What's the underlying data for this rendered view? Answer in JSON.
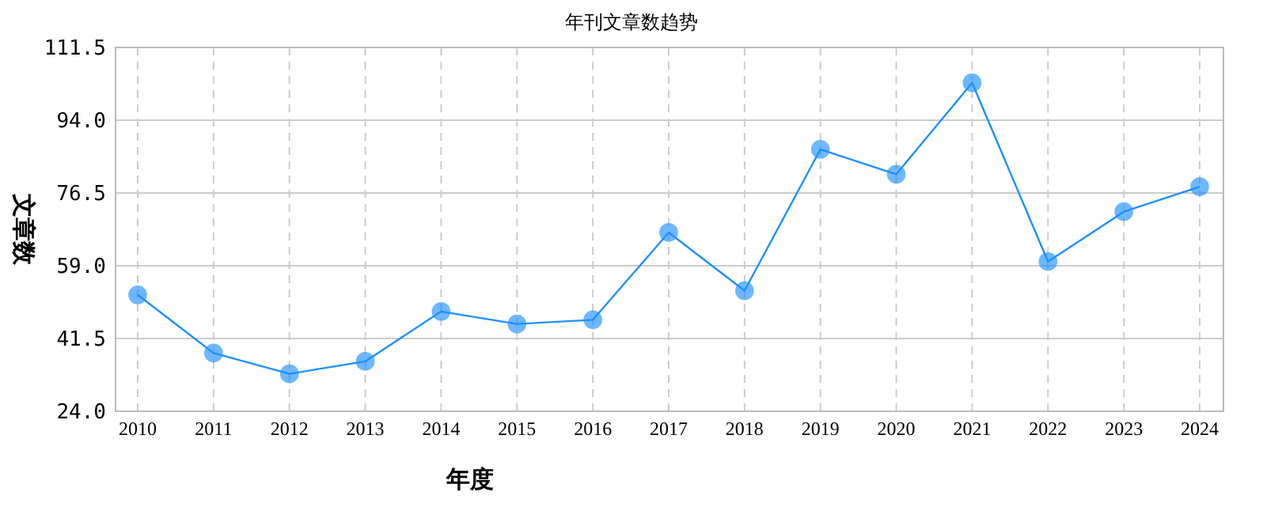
{
  "chart_data": {
    "type": "line",
    "title": "年刊文章数趋势",
    "xlabel": "年度",
    "ylabel": "文章数",
    "categories": [
      "2010",
      "2011",
      "2012",
      "2013",
      "2014",
      "2015",
      "2016",
      "2017",
      "2018",
      "2019",
      "2020",
      "2021",
      "2022",
      "2023",
      "2024"
    ],
    "series": [
      {
        "color": "#1e90ff",
        "values": [
          52,
          38,
          33,
          36,
          48,
          45,
          46,
          67,
          53,
          87,
          81,
          103,
          60,
          72,
          78
        ]
      }
    ],
    "ylim": [
      24,
      111.5
    ],
    "yticks": [
      {
        "value": 24,
        "label": "24.0"
      },
      {
        "value": 41.5,
        "label": "41.5"
      },
      {
        "value": 59,
        "label": "59.0"
      },
      {
        "value": 76.5,
        "label": "76.5"
      },
      {
        "value": 94,
        "label": "94.0"
      },
      {
        "value": 111.5,
        "label": "111.5"
      }
    ],
    "grid": true,
    "marker": "circle"
  }
}
